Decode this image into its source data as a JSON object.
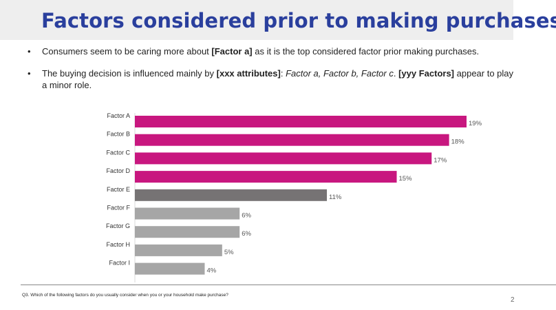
{
  "slide": {
    "title": "Factors considered prior to making purchases",
    "bullet1": {
      "pre": "Consumers seem to be caring more about ",
      "bold": "[Factor a]",
      "post": " as it is the top considered factor prior making purchases."
    },
    "bullet2": {
      "pre": "The buying decision is influenced mainly by ",
      "bold1": "[xxx attributes]",
      "colon": ": ",
      "italic": "Factor a, Factor b, Factor c",
      "dot": ". ",
      "bold2": "[yyy Factors]",
      "post": " appear to play a minor role."
    },
    "question": "Q3. Which of the following factors do you usually consider when you or your household make purchase?",
    "page_number": "2"
  },
  "colors": {
    "title": "#2a3f9d",
    "magenta": "#c8177f",
    "dark_gray": "#767374",
    "light_gray": "#a6a6a6"
  },
  "chart_data": {
    "type": "bar",
    "orientation": "horizontal",
    "categories": [
      "Factor A",
      "Factor B",
      "Factor C",
      "Factor D",
      "Factor E",
      "Factor F",
      "Factor G",
      "Factor H",
      "Factor I"
    ],
    "values": [
      19,
      18,
      17,
      15,
      11,
      6,
      6,
      5,
      4
    ],
    "value_labels": [
      "19%",
      "18%",
      "17%",
      "15%",
      "11%",
      "6%",
      "6%",
      "5%",
      "4%"
    ],
    "bar_groups": [
      "magenta",
      "magenta",
      "magenta",
      "magenta",
      "dark_gray",
      "light_gray",
      "light_gray",
      "light_gray",
      "light_gray"
    ],
    "xlim": [
      0,
      19
    ],
    "grid": false,
    "legend": false
  }
}
